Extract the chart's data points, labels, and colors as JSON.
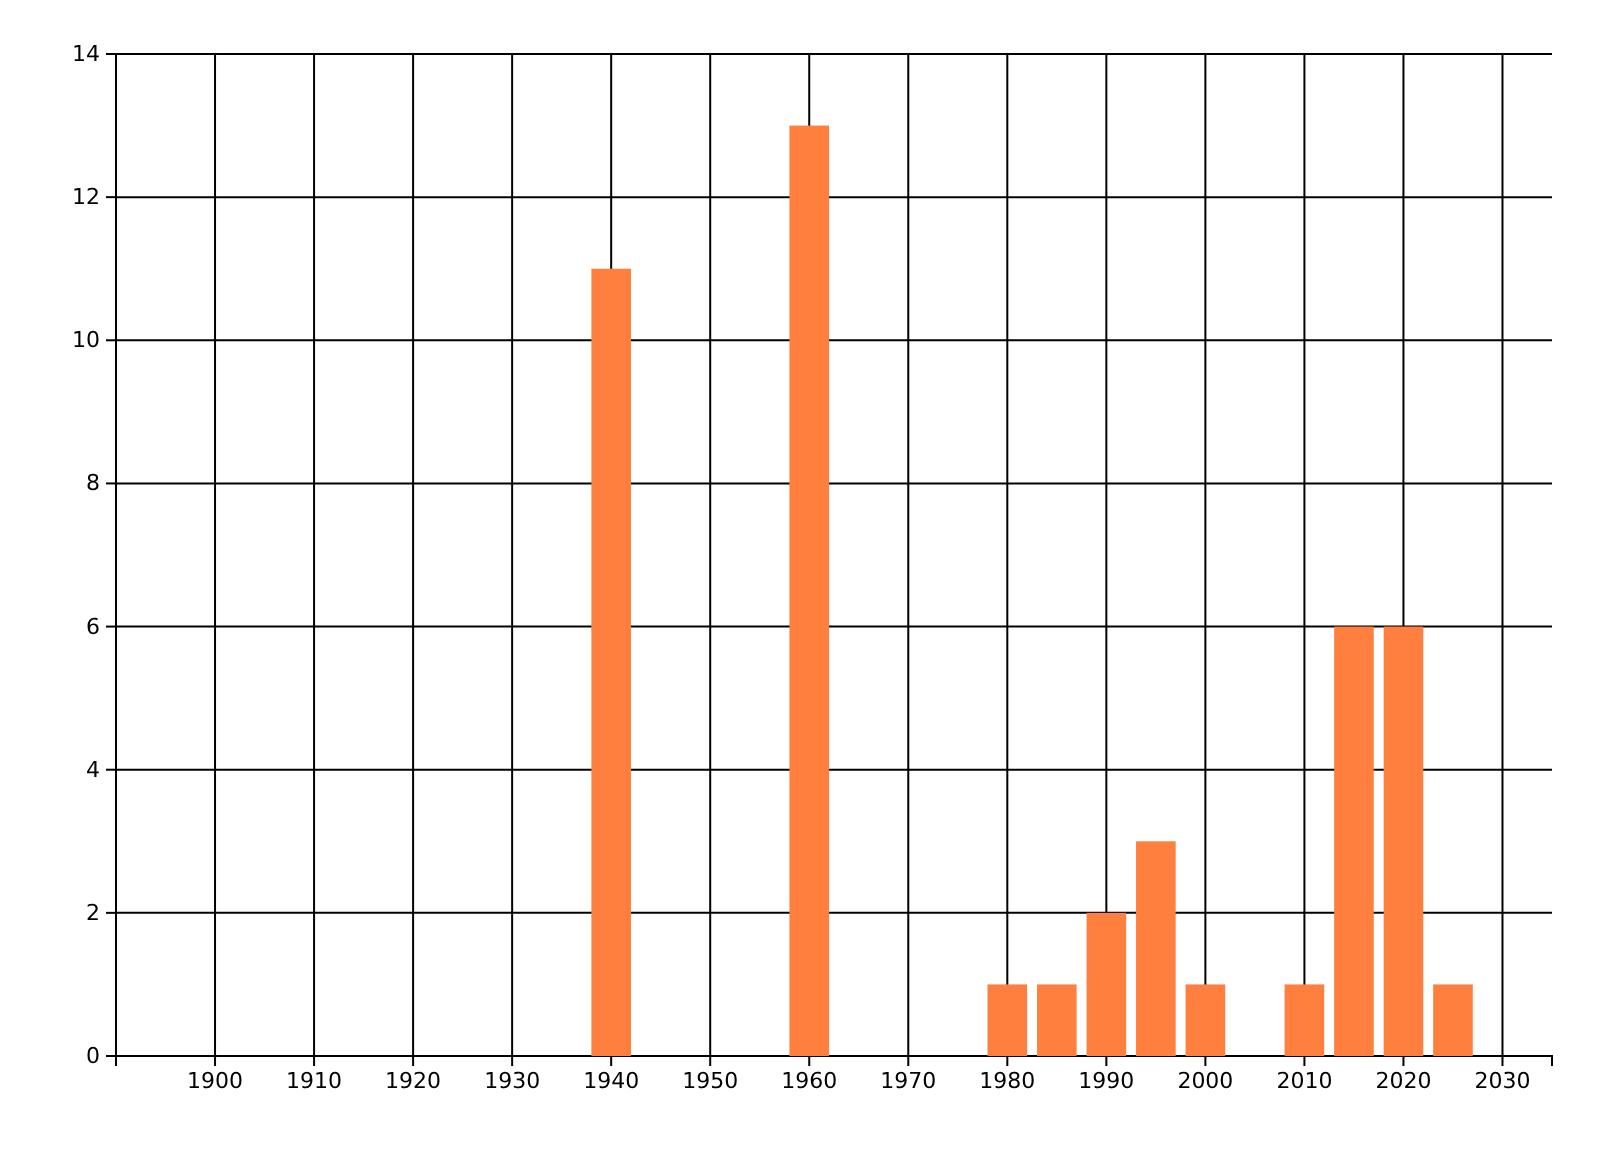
{
  "chart_data": {
    "type": "bar",
    "x": [
      1940,
      1960,
      1980,
      1985,
      1990,
      1995,
      2000,
      2010,
      2015,
      2020,
      2025
    ],
    "values": [
      11,
      13,
      1,
      1,
      2,
      3,
      1,
      1,
      6,
      6,
      1
    ],
    "color": "#ff7f3f",
    "xlim": [
      1890,
      2035
    ],
    "xticks": [
      1900,
      1910,
      1920,
      1930,
      1940,
      1950,
      1960,
      1970,
      1980,
      1990,
      2000,
      2010,
      2020,
      2030
    ],
    "ylim": [
      0,
      14
    ],
    "yticks": [
      0,
      2,
      4,
      6,
      8,
      10,
      12,
      14
    ],
    "grid": true
  }
}
